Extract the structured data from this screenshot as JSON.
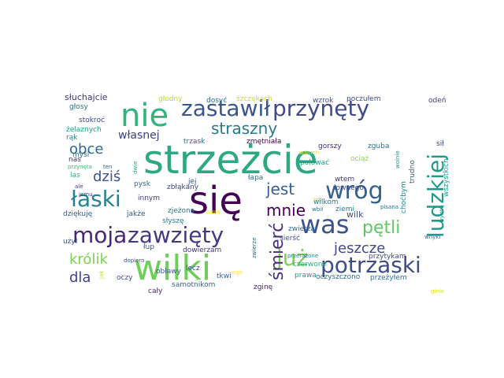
{
  "chart_data": {
    "type": "wordcloud",
    "words": [
      {
        "text": "strzeżcie",
        "color": "#2ea882"
      },
      {
        "text": "się",
        "color": "#440154"
      },
      {
        "text": "wilki",
        "color": "#6ece58"
      },
      {
        "text": "nie",
        "color": "#2fb47c"
      },
      {
        "text": "zastawił",
        "color": "#3a548c"
      },
      {
        "text": "przynęty",
        "color": "#3e4a89"
      },
      {
        "text": "wróg",
        "color": "#34608d"
      },
      {
        "text": "ludzkiej",
        "color": "#1f9a8a"
      },
      {
        "text": "potrzaski",
        "color": "#3d4d8a"
      },
      {
        "text": "zawzięty",
        "color": "#453781"
      },
      {
        "text": "już",
        "color": "#7ad151"
      },
      {
        "text": "moja",
        "color": "#482677"
      },
      {
        "text": "łaski",
        "color": "#26828e"
      },
      {
        "text": "was",
        "color": "#3b528b"
      },
      {
        "text": "straszny",
        "color": "#2a788e"
      },
      {
        "text": "jest",
        "color": "#35608d"
      },
      {
        "text": "mnie",
        "color": "#440154"
      },
      {
        "text": "pętli",
        "color": "#5ec962"
      },
      {
        "text": "śmierć",
        "color": "#472d7b"
      },
      {
        "text": "jeszcze",
        "color": "#3f4889"
      },
      {
        "text": "dziś",
        "color": "#39558c"
      },
      {
        "text": "obce",
        "color": "#31688e"
      },
      {
        "text": "własnej",
        "color": "#424086"
      },
      {
        "text": "królik",
        "color": "#7ad151"
      },
      {
        "text": "dla",
        "color": "#404387"
      },
      {
        "text": "słuchajcie",
        "color": "#46337f"
      },
      {
        "text": "głodny",
        "color": "#b5de2b"
      },
      {
        "text": "dosyć",
        "color": "#31688e"
      },
      {
        "text": "szczękach",
        "color": "#c8e020"
      },
      {
        "text": "wzrok",
        "color": "#3b528b"
      },
      {
        "text": "poczułem",
        "color": "#3e4989"
      },
      {
        "text": "odeń",
        "color": "#443983"
      },
      {
        "text": "głosy",
        "color": "#2e6f8e"
      },
      {
        "text": "stokroć",
        "color": "#3f4788"
      },
      {
        "text": "żelaznych",
        "color": "#1fa088"
      },
      {
        "text": "rąk",
        "color": "#25848e"
      },
      {
        "text": "myśl",
        "color": "#2e6e8e"
      },
      {
        "text": "trzask",
        "color": "#2c728e"
      },
      {
        "text": "zmętniała",
        "color": "#440154"
      },
      {
        "text": "gorszy",
        "color": "#46307e"
      },
      {
        "text": "zguba",
        "color": "#2d708e"
      },
      {
        "text": "sił",
        "color": "#404688"
      },
      {
        "text": "wanien",
        "color": "#e2e418"
      },
      {
        "text": "ociąż",
        "color": "#8ed645"
      },
      {
        "text": "polować",
        "color": "#1e9b8a"
      },
      {
        "text": "trudno",
        "color": "#33638d"
      },
      {
        "text": "nas",
        "color": "#443a83"
      },
      {
        "text": "przynęta",
        "color": "#3aba76"
      },
      {
        "text": "ten",
        "color": "#33638d"
      },
      {
        "text": "dwie",
        "color": "#22a785"
      },
      {
        "text": "las",
        "color": "#32b67a"
      },
      {
        "text": "ale",
        "color": "#443983"
      },
      {
        "text": "jemu",
        "color": "#3e4a89"
      },
      {
        "text": "jej",
        "color": "#38588c"
      },
      {
        "text": "wtem",
        "color": "#453781"
      },
      {
        "text": "łownego",
        "color": "#3e4989"
      },
      {
        "text": "choćbym",
        "color": "#24868e"
      },
      {
        "text": "wszystkich",
        "color": "#1f9a8a"
      },
      {
        "text": "wyrwę",
        "color": "#1f988b"
      },
      {
        "text": "wolnie",
        "color": "#20928c"
      },
      {
        "text": "pysk",
        "color": "#31688e"
      },
      {
        "text": "innym",
        "color": "#453781"
      },
      {
        "text": "zbłąkany",
        "color": "#3f4788"
      },
      {
        "text": "łapa",
        "color": "#2f6b8e"
      },
      {
        "text": "dziękuję",
        "color": "#365c8d"
      },
      {
        "text": "jakże",
        "color": "#39568c"
      },
      {
        "text": "zjeżona",
        "color": "#2a778e"
      },
      {
        "text": "słyszę",
        "color": "#26828e"
      },
      {
        "text": "szuję",
        "color": "#fde725"
      },
      {
        "text": "ból",
        "color": "#d0e11c"
      },
      {
        "text": "wbił",
        "color": "#2c728e"
      },
      {
        "text": "ziemi",
        "color": "#26828e"
      },
      {
        "text": "wilkom",
        "color": "#2a788e"
      },
      {
        "text": "wilk",
        "color": "#3c508b"
      },
      {
        "text": "pisana",
        "color": "#2c738e"
      },
      {
        "text": "zwierza",
        "color": "#2e6f8e"
      },
      {
        "text": "użył",
        "color": "#3b518b"
      },
      {
        "text": "łup",
        "color": "#38598c"
      },
      {
        "text": "dopiero",
        "color": "#3b528b"
      },
      {
        "text": "dowierzam",
        "color": "#46337f"
      },
      {
        "text": "przytykam",
        "color": "#3f4889"
      },
      {
        "text": "sierść",
        "color": "#3c508b"
      },
      {
        "text": "czerwone",
        "color": "#29af7f"
      },
      {
        "text": "przerażone",
        "color": "#26828e"
      },
      {
        "text": "wnyki",
        "color": "#33638d"
      },
      {
        "text": "oczy",
        "color": "#3c4f8a"
      },
      {
        "text": "cały",
        "color": "#482878"
      },
      {
        "text": "samotnikom",
        "color": "#31688e"
      },
      {
        "text": "zwierze",
        "color": "#2e6e8e"
      },
      {
        "text": "jego",
        "color": "#fde725"
      },
      {
        "text": "prawa",
        "color": "#1f9e89"
      },
      {
        "text": "oczyszczono",
        "color": "#2e6e8e"
      },
      {
        "text": "przeżyłem",
        "color": "#2c718e"
      },
      {
        "text": "ginie",
        "color": "#d8e219"
      },
      {
        "text": "zginę",
        "color": "#481f70"
      },
      {
        "text": "obławy",
        "color": "#39568c"
      },
      {
        "text": "lecz",
        "color": "#3e4c8a"
      },
      {
        "text": "tkwi",
        "color": "#34618d"
      },
      {
        "text": "jak",
        "color": "#b8de29"
      }
    ]
  }
}
